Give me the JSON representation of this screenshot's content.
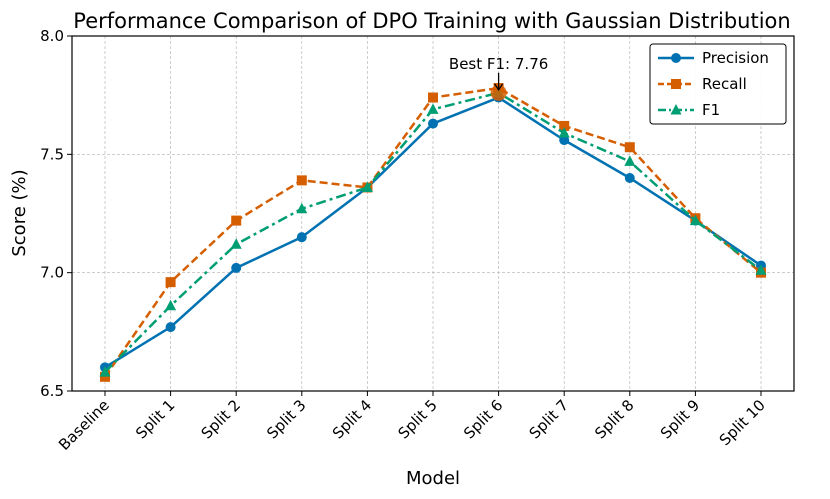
{
  "chart_data": {
    "type": "line",
    "title": "Performance Comparison of DPO Training with Gaussian Distribution",
    "xlabel": "Model",
    "ylabel": "Score (%)",
    "categories": [
      "Baseline",
      "Split 1",
      "Split 2",
      "Split 3",
      "Split 4",
      "Split 5",
      "Split 6",
      "Split 7",
      "Split 8",
      "Split 9",
      "Split 10"
    ],
    "ylim": [
      6.5,
      8.0
    ],
    "yticks": [
      6.5,
      7.0,
      7.5,
      8.0
    ],
    "ytick_labels": [
      "6.5",
      "7.0",
      "7.5",
      "8.0"
    ],
    "grid": true,
    "legend_position": "top-right",
    "series": [
      {
        "name": "Precision",
        "color": "#0072B2",
        "dash": "solid",
        "marker": "circle",
        "values": [
          6.6,
          6.77,
          7.02,
          7.15,
          7.36,
          7.63,
          7.74,
          7.56,
          7.4,
          7.22,
          7.03
        ]
      },
      {
        "name": "Recall",
        "color": "#D55E00",
        "dash": "dashed",
        "marker": "square",
        "values": [
          6.56,
          6.96,
          7.22,
          7.39,
          7.36,
          7.74,
          7.78,
          7.62,
          7.53,
          7.23,
          7.0
        ]
      },
      {
        "name": "F1",
        "color": "#009E73",
        "dash": "dashdot",
        "marker": "triangle",
        "values": [
          6.58,
          6.86,
          7.12,
          7.27,
          7.36,
          7.69,
          7.76,
          7.59,
          7.47,
          7.22,
          7.01
        ]
      }
    ],
    "annotation": {
      "text": "Best F1: 7.76",
      "category": "Split 6",
      "value": 7.76
    }
  }
}
